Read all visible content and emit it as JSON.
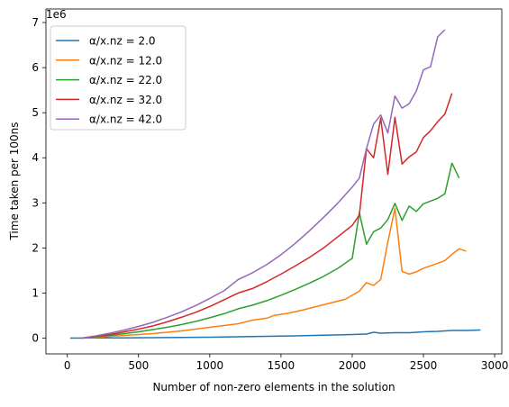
{
  "chart_data": {
    "type": "line",
    "xlabel": "Number of non-zero elements in the solution",
    "ylabel": "Time taken per 100ns",
    "y_offset_label": "1e6",
    "xlim": [
      -150,
      3050
    ],
    "ylim": [
      -0.35,
      7.3
    ],
    "y_scale_note": "values in units of 1e6",
    "x_ticks": [
      0,
      500,
      1000,
      1500,
      2000,
      2500,
      3000
    ],
    "x_tick_labels": [
      "0",
      "500",
      "1000",
      "1500",
      "2000",
      "2500",
      "3000"
    ],
    "y_ticks": [
      0,
      1,
      2,
      3,
      4,
      5,
      6,
      7
    ],
    "y_tick_labels": [
      "0",
      "1",
      "2",
      "3",
      "4",
      "5",
      "6",
      "7"
    ],
    "legend_position": "top-left",
    "series": [
      {
        "name": "α/x.nz = 2.0",
        "color": "#1f77b4",
        "points": [
          [
            20,
            0
          ],
          [
            200,
            0.003
          ],
          [
            400,
            0.006
          ],
          [
            600,
            0.01
          ],
          [
            800,
            0.014
          ],
          [
            1000,
            0.02
          ],
          [
            1200,
            0.03
          ],
          [
            1400,
            0.04
          ],
          [
            1600,
            0.05
          ],
          [
            1800,
            0.065
          ],
          [
            2000,
            0.08
          ],
          [
            2100,
            0.09
          ],
          [
            2150,
            0.13
          ],
          [
            2200,
            0.11
          ],
          [
            2300,
            0.12
          ],
          [
            2400,
            0.12
          ],
          [
            2500,
            0.14
          ],
          [
            2600,
            0.15
          ],
          [
            2700,
            0.17
          ],
          [
            2800,
            0.17
          ],
          [
            2900,
            0.18
          ]
        ]
      },
      {
        "name": "α/x.nz = 12.0",
        "color": "#ff7f0e",
        "points": [
          [
            100,
            0
          ],
          [
            200,
            0.02
          ],
          [
            300,
            0.04
          ],
          [
            400,
            0.06
          ],
          [
            500,
            0.08
          ],
          [
            600,
            0.1
          ],
          [
            700,
            0.13
          ],
          [
            800,
            0.16
          ],
          [
            900,
            0.2
          ],
          [
            1000,
            0.24
          ],
          [
            1100,
            0.28
          ],
          [
            1200,
            0.32
          ],
          [
            1300,
            0.4
          ],
          [
            1400,
            0.44
          ],
          [
            1450,
            0.5
          ],
          [
            1550,
            0.55
          ],
          [
            1650,
            0.62
          ],
          [
            1750,
            0.7
          ],
          [
            1850,
            0.78
          ],
          [
            1950,
            0.86
          ],
          [
            2000,
            0.95
          ],
          [
            2050,
            1.04
          ],
          [
            2100,
            1.23
          ],
          [
            2150,
            1.17
          ],
          [
            2200,
            1.3
          ],
          [
            2250,
            2.13
          ],
          [
            2300,
            2.88
          ],
          [
            2350,
            1.48
          ],
          [
            2400,
            1.42
          ],
          [
            2450,
            1.47
          ],
          [
            2500,
            1.55
          ],
          [
            2600,
            1.66
          ],
          [
            2650,
            1.72
          ],
          [
            2700,
            1.86
          ],
          [
            2750,
            1.98
          ],
          [
            2800,
            1.93
          ]
        ]
      },
      {
        "name": "α/x.nz = 22.0",
        "color": "#2ca02c",
        "points": [
          [
            100,
            0
          ],
          [
            200,
            0.03
          ],
          [
            300,
            0.06
          ],
          [
            400,
            0.1
          ],
          [
            500,
            0.14
          ],
          [
            600,
            0.19
          ],
          [
            700,
            0.24
          ],
          [
            800,
            0.3
          ],
          [
            900,
            0.37
          ],
          [
            1000,
            0.45
          ],
          [
            1100,
            0.54
          ],
          [
            1200,
            0.65
          ],
          [
            1300,
            0.73
          ],
          [
            1400,
            0.83
          ],
          [
            1500,
            0.95
          ],
          [
            1600,
            1.08
          ],
          [
            1700,
            1.22
          ],
          [
            1800,
            1.37
          ],
          [
            1900,
            1.55
          ],
          [
            2000,
            1.77
          ],
          [
            2050,
            2.78
          ],
          [
            2100,
            2.08
          ],
          [
            2150,
            2.36
          ],
          [
            2200,
            2.44
          ],
          [
            2250,
            2.63
          ],
          [
            2300,
            2.99
          ],
          [
            2350,
            2.61
          ],
          [
            2400,
            2.93
          ],
          [
            2450,
            2.81
          ],
          [
            2500,
            2.98
          ],
          [
            2600,
            3.1
          ],
          [
            2650,
            3.2
          ],
          [
            2700,
            3.88
          ],
          [
            2750,
            3.55
          ]
        ]
      },
      {
        "name": "α/x.nz = 32.0",
        "color": "#d62728",
        "points": [
          [
            100,
            0
          ],
          [
            200,
            0.04
          ],
          [
            300,
            0.08
          ],
          [
            400,
            0.14
          ],
          [
            500,
            0.2
          ],
          [
            600,
            0.27
          ],
          [
            700,
            0.36
          ],
          [
            800,
            0.46
          ],
          [
            900,
            0.57
          ],
          [
            1000,
            0.7
          ],
          [
            1100,
            0.85
          ],
          [
            1200,
            1.0
          ],
          [
            1300,
            1.1
          ],
          [
            1400,
            1.25
          ],
          [
            1500,
            1.42
          ],
          [
            1600,
            1.6
          ],
          [
            1700,
            1.79
          ],
          [
            1800,
            2.0
          ],
          [
            1900,
            2.25
          ],
          [
            2000,
            2.5
          ],
          [
            2050,
            2.73
          ],
          [
            2100,
            4.2
          ],
          [
            2150,
            4.0
          ],
          [
            2200,
            4.88
          ],
          [
            2250,
            3.63
          ],
          [
            2300,
            4.9
          ],
          [
            2350,
            3.86
          ],
          [
            2400,
            4.02
          ],
          [
            2450,
            4.13
          ],
          [
            2500,
            4.45
          ],
          [
            2550,
            4.6
          ],
          [
            2600,
            4.8
          ],
          [
            2650,
            4.97
          ],
          [
            2700,
            5.43
          ]
        ]
      },
      {
        "name": "α/x.nz = 42.0",
        "color": "#9467bd",
        "points": [
          [
            100,
            0
          ],
          [
            200,
            0.05
          ],
          [
            300,
            0.11
          ],
          [
            400,
            0.18
          ],
          [
            500,
            0.26
          ],
          [
            600,
            0.35
          ],
          [
            700,
            0.46
          ],
          [
            800,
            0.58
          ],
          [
            900,
            0.72
          ],
          [
            1000,
            0.88
          ],
          [
            1100,
            1.05
          ],
          [
            1200,
            1.3
          ],
          [
            1300,
            1.45
          ],
          [
            1400,
            1.63
          ],
          [
            1500,
            1.85
          ],
          [
            1600,
            2.1
          ],
          [
            1700,
            2.38
          ],
          [
            1800,
            2.68
          ],
          [
            1900,
            3.0
          ],
          [
            2000,
            3.35
          ],
          [
            2050,
            3.55
          ],
          [
            2100,
            4.2
          ],
          [
            2150,
            4.75
          ],
          [
            2200,
            4.95
          ],
          [
            2250,
            4.55
          ],
          [
            2300,
            5.37
          ],
          [
            2350,
            5.1
          ],
          [
            2400,
            5.2
          ],
          [
            2450,
            5.48
          ],
          [
            2500,
            5.95
          ],
          [
            2550,
            6.02
          ],
          [
            2600,
            6.68
          ],
          [
            2650,
            6.84
          ]
        ]
      }
    ]
  }
}
